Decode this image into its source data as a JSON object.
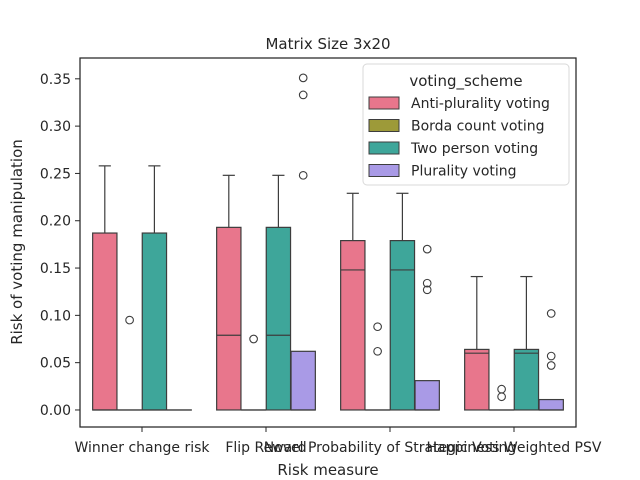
{
  "chart_data": {
    "type": "box",
    "title": "Matrix Size 3x20",
    "xlabel": "Risk measure",
    "ylabel": "Risk of voting manipulation",
    "ylim": [
      -0.018,
      0.372
    ],
    "yticks": [
      0.0,
      0.05,
      0.1,
      0.15,
      0.2,
      0.25,
      0.3,
      0.35
    ],
    "ytick_labels": [
      "0.00",
      "0.05",
      "0.10",
      "0.15",
      "0.20",
      "0.25",
      "0.30",
      "0.35"
    ],
    "categories": [
      "Winner change risk",
      "Flip Reward",
      "Novel Probability of Strategic Voting",
      "Happiness Weighted PSV"
    ],
    "grid": false,
    "legend": {
      "title": "voting_scheme",
      "placement": "top-right"
    },
    "series": [
      {
        "name": "Anti-plurality voting",
        "color": "#e8768c",
        "boxes": [
          {
            "whislo": 0.0,
            "q1": 0.0,
            "median": 0.0,
            "q3": 0.187,
            "whishi": 0.258,
            "fliers": []
          },
          {
            "whislo": 0.0,
            "q1": 0.0,
            "median": 0.079,
            "q3": 0.193,
            "whishi": 0.248,
            "fliers": []
          },
          {
            "whislo": 0.0,
            "q1": 0.0,
            "median": 0.148,
            "q3": 0.179,
            "whishi": 0.229,
            "fliers": []
          },
          {
            "whislo": 0.0,
            "q1": 0.0,
            "median": 0.06,
            "q3": 0.064,
            "whishi": 0.141,
            "fliers": []
          }
        ]
      },
      {
        "name": "Borda count voting",
        "color": "#9d9a39",
        "boxes": [
          {
            "whislo": 0.0,
            "q1": 0.0,
            "median": 0.0,
            "q3": 0.0,
            "whishi": 0.0,
            "fliers": [
              0.095
            ]
          },
          {
            "whislo": 0.0,
            "q1": 0.0,
            "median": 0.0,
            "q3": 0.0,
            "whishi": 0.0,
            "fliers": [
              0.075
            ]
          },
          {
            "whislo": 0.0,
            "q1": 0.0,
            "median": 0.0,
            "q3": 0.0,
            "whishi": 0.0,
            "fliers": [
              0.088,
              0.062
            ]
          },
          {
            "whislo": 0.0,
            "q1": 0.0,
            "median": 0.0,
            "q3": 0.0,
            "whishi": 0.0,
            "fliers": [
              0.022,
              0.014
            ]
          }
        ]
      },
      {
        "name": "Two person voting",
        "color": "#3ea69a",
        "boxes": [
          {
            "whislo": 0.0,
            "q1": 0.0,
            "median": 0.0,
            "q3": 0.187,
            "whishi": 0.258,
            "fliers": []
          },
          {
            "whislo": 0.0,
            "q1": 0.0,
            "median": 0.079,
            "q3": 0.193,
            "whishi": 0.248,
            "fliers": []
          },
          {
            "whislo": 0.0,
            "q1": 0.0,
            "median": 0.148,
            "q3": 0.179,
            "whishi": 0.229,
            "fliers": []
          },
          {
            "whislo": 0.0,
            "q1": 0.0,
            "median": 0.06,
            "q3": 0.064,
            "whishi": 0.141,
            "fliers": []
          }
        ]
      },
      {
        "name": "Plurality voting",
        "color": "#a99ae6",
        "boxes": [
          {
            "whislo": 0.0,
            "q1": 0.0,
            "median": 0.0,
            "q3": 0.0,
            "whishi": 0.0,
            "fliers": []
          },
          {
            "whislo": 0.0,
            "q1": 0.0,
            "median": 0.0,
            "q3": 0.062,
            "whishi": 0.062,
            "fliers": [
              0.351,
              0.333,
              0.248
            ]
          },
          {
            "whislo": 0.0,
            "q1": 0.0,
            "median": 0.0,
            "q3": 0.031,
            "whishi": 0.031,
            "fliers": [
              0.17,
              0.134,
              0.127
            ]
          },
          {
            "whislo": 0.0,
            "q1": 0.0,
            "median": 0.0,
            "q3": 0.011,
            "whishi": 0.011,
            "fliers": [
              0.102,
              0.057,
              0.047
            ]
          }
        ]
      }
    ]
  }
}
